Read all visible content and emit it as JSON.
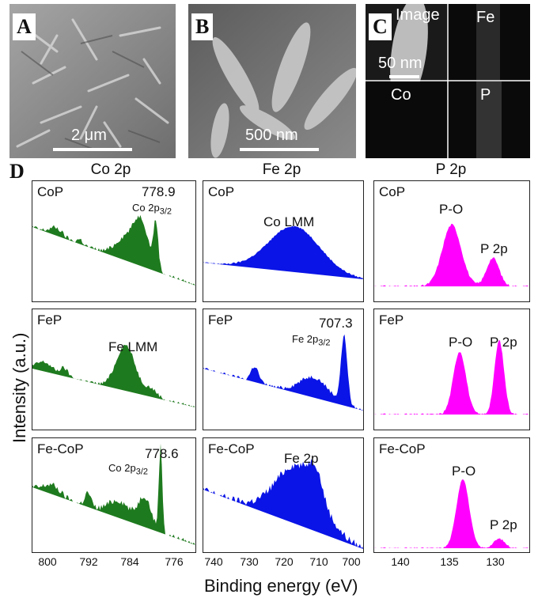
{
  "panels": {
    "A": {
      "letter": "A",
      "scale": "2 μm"
    },
    "B": {
      "letter": "B",
      "scale": "500 nm"
    },
    "C": {
      "letter": "C",
      "image_label": "Image",
      "scale": "50 nm",
      "maps": [
        "Fe",
        "Co",
        "P"
      ]
    },
    "D": {
      "letter": "D"
    }
  },
  "columns": [
    "Co 2p",
    "Fe 2p",
    "P 2p"
  ],
  "ylabel": "Intensity (a.u.)",
  "xlabel": "Binding energy (eV)",
  "ticks": {
    "co": [
      "800",
      "792",
      "784",
      "776"
    ],
    "fe": [
      "740",
      "730",
      "720",
      "710",
      "700"
    ],
    "p": [
      "140",
      "135",
      "130"
    ]
  },
  "colors": {
    "co": "#1e7a1e",
    "fe": "#0a14e6",
    "p": "#ff00ff"
  },
  "chart_data": [
    {
      "type": "area",
      "panel": "Co 2p / CoP",
      "sample": "CoP",
      "peak_value": "778.9",
      "annotation": "Co 2p3/2",
      "xlim": [
        805,
        773
      ]
    },
    {
      "type": "area",
      "panel": "Fe 2p / CoP",
      "sample": "CoP",
      "annotation": "Co LMM",
      "xlim": [
        740,
        695
      ]
    },
    {
      "type": "area",
      "panel": "P 2p / CoP",
      "sample": "CoP",
      "annotations": [
        "P-O",
        "P 2p"
      ],
      "xlim": [
        143,
        126
      ]
    },
    {
      "type": "area",
      "panel": "Co 2p / FeP",
      "sample": "FeP",
      "annotation": "Fe LMM",
      "xlim": [
        805,
        773
      ]
    },
    {
      "type": "area",
      "panel": "Fe 2p / FeP",
      "sample": "FeP",
      "peak_value": "707.3",
      "annotation": "Fe 2p3/2",
      "xlim": [
        740,
        695
      ]
    },
    {
      "type": "area",
      "panel": "P 2p / FeP",
      "sample": "FeP",
      "annotations": [
        "P-O",
        "P 2p"
      ],
      "xlim": [
        143,
        126
      ]
    },
    {
      "type": "area",
      "panel": "Co 2p / Fe-CoP",
      "sample": "Fe-CoP",
      "peak_value": "778.6",
      "annotation": "Co 2p3/2",
      "xlim": [
        805,
        773
      ]
    },
    {
      "type": "area",
      "panel": "Fe 2p / Fe-CoP",
      "sample": "Fe-CoP",
      "annotation": "Fe 2p",
      "xlim": [
        740,
        695
      ]
    },
    {
      "type": "area",
      "panel": "P 2p / Fe-CoP",
      "sample": "Fe-CoP",
      "annotations": [
        "P-O",
        "P 2p"
      ],
      "xlim": [
        143,
        126
      ]
    }
  ],
  "labels": {
    "co_cop_sample": "CoP",
    "co_cop_val": "778.9",
    "co_cop_ann": "Co 2p",
    "co_cop_sub": "3/2",
    "fe_cop_sample": "CoP",
    "fe_cop_ann": "Co LMM",
    "p_cop_sample": "CoP",
    "p_cop_po": "P-O",
    "p_cop_p2p": "P 2p",
    "co_fep_sample": "FeP",
    "co_fep_ann": "Fe LMM",
    "fe_fep_sample": "FeP",
    "fe_fep_val": "707.3",
    "fe_fep_ann": "Fe 2p",
    "fe_fep_sub": "3/2",
    "p_fep_sample": "FeP",
    "p_fep_po": "P-O",
    "p_fep_p2p": "P 2p",
    "co_fecop_sample": "Fe-CoP",
    "co_fecop_val": "778.6",
    "co_fecop_ann": "Co 2p",
    "co_fecop_sub": "3/2",
    "fe_fecop_sample": "Fe-CoP",
    "fe_fecop_ann": "Fe 2p",
    "p_fecop_sample": "Fe-CoP",
    "p_fecop_po": "P-O",
    "p_fecop_p2p": "P 2p"
  }
}
